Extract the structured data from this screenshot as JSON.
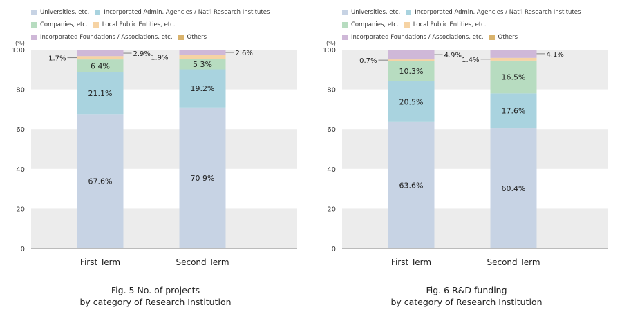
{
  "legend": {
    "universities": "Universities, etc.",
    "agencies": "Incorporated Admin. Agencies / Nat'l Research Institutes",
    "companies": "Companies, etc.",
    "local": "Local Public Entities, etc.",
    "foundations": "Incorporated Foundations / Associations, etc.",
    "others": "Others"
  },
  "colors": {
    "universities": "#c7d3e4",
    "agencies": "#a9d3df",
    "companies": "#b7dcc0",
    "local": "#f6d3a4",
    "foundations": "#cfb8d8",
    "others": "#d9b36d",
    "band": "#ececec"
  },
  "chart_data": [
    {
      "type": "bar",
      "stacked": true,
      "title": "Fig. 5  No. of projects",
      "subtitle": "by category of Research Institution",
      "ylabel": "(%)",
      "ylim": [
        0,
        100
      ],
      "yticks": [
        0,
        20,
        40,
        60,
        80,
        100
      ],
      "categories": [
        "First Term",
        "Second Term"
      ],
      "series": [
        {
          "name": "Universities, etc.",
          "key": "universities",
          "values": [
            67.6,
            70.9
          ],
          "labels": [
            "67.6%",
            "70 9%"
          ]
        },
        {
          "name": "Incorporated Admin. Agencies / Nat'l Research Institutes",
          "key": "agencies",
          "values": [
            21.1,
            19.2
          ],
          "labels": [
            "21.1%",
            "19.2%"
          ]
        },
        {
          "name": "Companies, etc.",
          "key": "companies",
          "values": [
            6.4,
            5.3
          ],
          "labels": [
            "6 4%",
            "5 3%"
          ]
        },
        {
          "name": "Local Public Entities, etc.",
          "key": "local",
          "values": [
            1.7,
            1.9
          ],
          "labels": [
            "1.7%",
            "1.9%"
          ]
        },
        {
          "name": "Incorporated Foundations / Associations, etc.",
          "key": "foundations",
          "values": [
            2.9,
            2.6
          ],
          "labels": [
            "2.9%",
            "2.6%"
          ]
        },
        {
          "name": "Others",
          "key": "others",
          "values": [
            0.3,
            0.1
          ],
          "labels": [
            "",
            ""
          ]
        }
      ]
    },
    {
      "type": "bar",
      "stacked": true,
      "title": "Fig. 6  R&D funding",
      "subtitle": "by category of Research Institution",
      "ylabel": "(%)",
      "ylim": [
        0,
        100
      ],
      "yticks": [
        0,
        20,
        40,
        60,
        80,
        100
      ],
      "categories": [
        "First Term",
        "Second Term"
      ],
      "series": [
        {
          "name": "Universities, etc.",
          "key": "universities",
          "values": [
            63.6,
            60.4
          ],
          "labels": [
            "63.6%",
            "60.4%"
          ]
        },
        {
          "name": "Incorporated Admin. Agencies / Nat'l Research Institutes",
          "key": "agencies",
          "values": [
            20.5,
            17.6
          ],
          "labels": [
            "20.5%",
            "17.6%"
          ]
        },
        {
          "name": "Companies, etc.",
          "key": "companies",
          "values": [
            10.3,
            16.5
          ],
          "labels": [
            "10.3%",
            "16.5%"
          ]
        },
        {
          "name": "Local Public Entities, etc.",
          "key": "local",
          "values": [
            0.7,
            1.4
          ],
          "labels": [
            "0.7%",
            "1.4%"
          ]
        },
        {
          "name": "Incorporated Foundations / Associations, etc.",
          "key": "foundations",
          "values": [
            4.9,
            4.1
          ],
          "labels": [
            "4.9%",
            "4.1%"
          ]
        },
        {
          "name": "Others",
          "key": "others",
          "values": [
            0.0,
            0.0
          ],
          "labels": [
            "",
            ""
          ]
        }
      ]
    }
  ]
}
